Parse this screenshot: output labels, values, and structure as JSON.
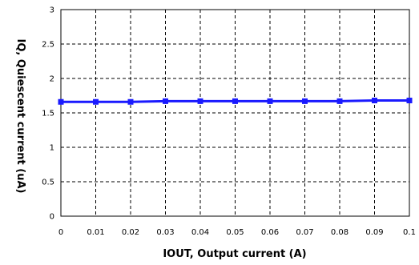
{
  "chart_data": {
    "type": "line",
    "title": "",
    "xlabel": "IOUT, Output current (A)",
    "ylabel": "IQ, Quiescent current (uA)",
    "x": [
      0,
      0.01,
      0.02,
      0.03,
      0.04,
      0.05,
      0.06,
      0.07,
      0.08,
      0.09,
      0.1
    ],
    "series": [
      {
        "values": [
          1.66,
          1.66,
          1.66,
          1.67,
          1.67,
          1.67,
          1.67,
          1.67,
          1.67,
          1.68,
          1.68
        ],
        "color": "#1a1aff",
        "marker": "square"
      }
    ],
    "xticks": [
      "0",
      "0.01",
      "0.02",
      "0.03",
      "0.04",
      "0.05",
      "0.06",
      "0.07",
      "0.08",
      "0.09",
      "0.1"
    ],
    "yticks": [
      "0",
      "0.5",
      "1",
      "1.5",
      "2",
      "2.5",
      "3"
    ],
    "xlim": [
      0,
      0.1
    ],
    "ylim": [
      0,
      3
    ],
    "grid": true,
    "grid_style": "dashed",
    "legend": false
  }
}
